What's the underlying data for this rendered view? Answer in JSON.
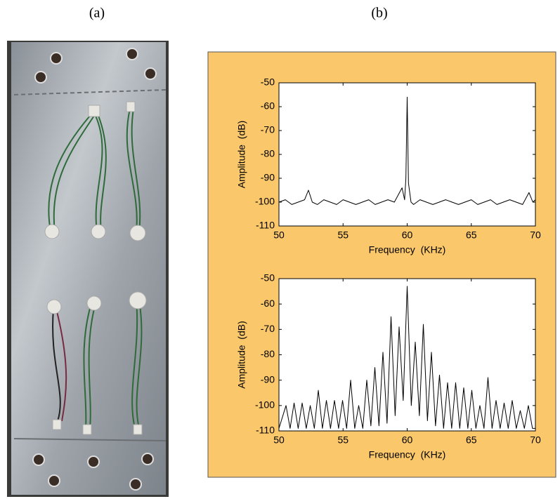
{
  "labels": {
    "a": "(a)",
    "b": "(b)"
  },
  "chart_data": [
    {
      "type": "line",
      "color": "#000000",
      "grid": false,
      "x_label": "Frequency  (KHz)",
      "y_label": "Amplitude  (dB)",
      "xlim": [
        50,
        70
      ],
      "xticks": [
        50,
        55,
        60,
        65,
        70
      ],
      "ylim": [
        -110,
        -50
      ],
      "yticks": [
        -110,
        -100,
        -90,
        -80,
        -70,
        -60,
        -50
      ],
      "x": [
        50,
        50.5,
        51,
        51.5,
        52,
        52.3,
        52.6,
        53,
        53.5,
        54,
        54.5,
        55,
        55.5,
        56,
        56.5,
        57,
        57.5,
        58,
        58.5,
        59,
        59.6,
        59.8,
        59.9,
        60,
        60.1,
        60.3,
        60.5,
        61,
        61.5,
        62,
        62.5,
        63,
        63.5,
        64,
        64.5,
        65,
        65.5,
        66,
        66.5,
        67,
        67.5,
        68,
        68.5,
        69,
        69.5,
        69.8,
        70
      ],
      "values": [
        -100,
        -99,
        -101,
        -100,
        -99,
        -95,
        -100,
        -101,
        -99,
        -100,
        -101,
        -99,
        -100,
        -101,
        -100,
        -99,
        -101,
        -100,
        -99,
        -100,
        -94,
        -99,
        -90,
        -56,
        -92,
        -100,
        -101,
        -99,
        -100,
        -101,
        -100,
        -99,
        -100,
        -101,
        -100,
        -99,
        -101,
        -100,
        -99,
        -101,
        -100,
        -99,
        -100,
        -101,
        -96,
        -100,
        -99
      ]
    },
    {
      "type": "line",
      "color": "#000000",
      "grid": false,
      "x_label": "Frequency  (KHz)",
      "y_label": "Amplitude  (dB)",
      "xlim": [
        50,
        70
      ],
      "xticks": [
        50,
        55,
        60,
        65,
        70
      ],
      "ylim": [
        -110,
        -50
      ],
      "yticks": [
        -110,
        -100,
        -90,
        -80,
        -70,
        -60,
        -50
      ],
      "x": [
        50,
        50.55,
        50.87,
        51.18,
        51.5,
        51.81,
        52.13,
        52.44,
        52.76,
        53.07,
        53.39,
        53.7,
        54.02,
        54.33,
        54.65,
        54.96,
        55.28,
        55.59,
        55.91,
        56.22,
        56.54,
        56.85,
        57.17,
        57.48,
        57.8,
        58.11,
        58.43,
        58.74,
        59.06,
        59.37,
        59.69,
        60,
        60.32,
        60.63,
        60.95,
        61.26,
        61.58,
        61.89,
        62.21,
        62.52,
        62.84,
        63.15,
        63.47,
        63.78,
        64.1,
        64.41,
        64.73,
        65.04,
        65.36,
        65.67,
        65.99,
        66.3,
        66.62,
        66.93,
        67.25,
        67.56,
        67.88,
        68.19,
        68.51,
        68.82,
        69.14,
        69.45,
        69.77,
        70
      ],
      "values": [
        -109,
        -100,
        -109,
        -99,
        -109,
        -99,
        -109,
        -100,
        -109,
        -94,
        -109,
        -98,
        -109,
        -98,
        -109,
        -98,
        -109,
        -90,
        -109,
        -100,
        -109,
        -90,
        -108,
        -85,
        -108,
        -79,
        -107,
        -65,
        -104,
        -69,
        -98,
        -53,
        -100,
        -75,
        -104,
        -68,
        -106,
        -79,
        -108,
        -88,
        -109,
        -91,
        -109,
        -91,
        -109,
        -93,
        -109,
        -94,
        -109,
        -100,
        -109,
        -89,
        -109,
        -98,
        -109,
        -99,
        -109,
        -98,
        -109,
        -102,
        -109,
        -100,
        -109,
        -109
      ]
    }
  ]
}
